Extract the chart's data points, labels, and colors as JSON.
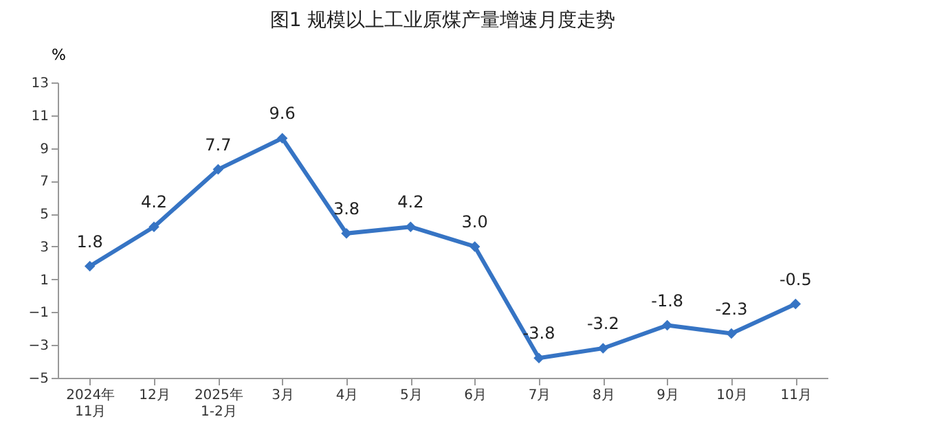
{
  "chart_data": {
    "type": "line",
    "title": "图1  规模以上工业原煤产量增速月度走势",
    "ylabel": "%",
    "categories": [
      "2024年\n11月",
      "12月",
      "2025年\n1-2月",
      "3月",
      "4月",
      "5月",
      "6月",
      "7月",
      "8月",
      "9月",
      "10月",
      "11月"
    ],
    "series": [
      {
        "color": "#3674c4",
        "values": [
          1.8,
          4.2,
          7.7,
          9.6,
          3.8,
          4.2,
          3.0,
          -3.8,
          -3.2,
          -1.8,
          -2.3,
          -0.5
        ],
        "value_labels": [
          "1.8",
          "4.2",
          "7.7",
          "9.6",
          "3.8",
          "4.2",
          "3.0",
          "-3.8",
          "-3.2",
          "-1.8",
          "-2.3",
          "-0.5"
        ]
      }
    ],
    "ylim": [
      -5,
      13
    ],
    "yticks": [
      -5,
      -3,
      -1,
      1,
      3,
      5,
      7,
      9,
      11,
      13
    ],
    "grid": false,
    "marker": "diamond",
    "line_style": "solid"
  }
}
